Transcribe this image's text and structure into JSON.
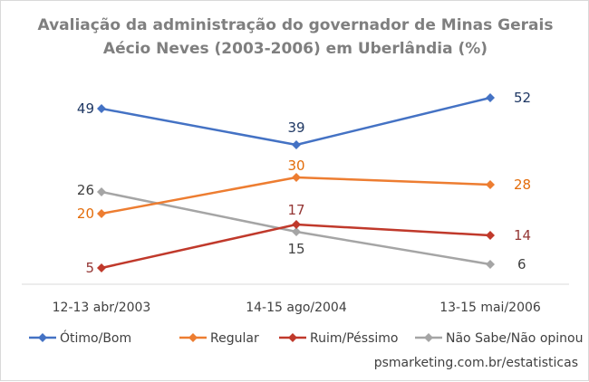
{
  "chart_data": {
    "type": "line",
    "title_lines": [
      "Avaliação da administração do governador de Minas Gerais",
      "Aécio Neves  (2003-2006) em Uberlândia (%)"
    ],
    "categories": [
      "12-13 abr/2003",
      "14-15 ago/2004",
      "13-15 mai/2006"
    ],
    "ylim": [
      0,
      60
    ],
    "grid": false,
    "legend_position": "bottom",
    "series": [
      {
        "name": "Ótimo/Bom",
        "color": "#4472c4",
        "label_color": "#1f3864",
        "values": [
          49,
          39,
          52
        ],
        "labels": [
          "49",
          "39",
          "52"
        ]
      },
      {
        "name": "Regular",
        "color": "#ed7d31",
        "label_color": "#e36c0a",
        "values": [
          20,
          30,
          28
        ],
        "labels": [
          "20",
          "30",
          "28"
        ]
      },
      {
        "name": "Ruim/Péssimo",
        "color": "#c0392b",
        "label_color": "#943634",
        "values": [
          5,
          17,
          14
        ],
        "labels": [
          "5",
          "17",
          "14"
        ]
      },
      {
        "name": "Não Sabe/Não opinou",
        "color": "#a5a5a5",
        "label_color": "#404040",
        "values": [
          26,
          15,
          6
        ],
        "labels": [
          "26",
          "15",
          "6"
        ]
      }
    ],
    "source": "psmarketing.com.br/estatisticas"
  }
}
